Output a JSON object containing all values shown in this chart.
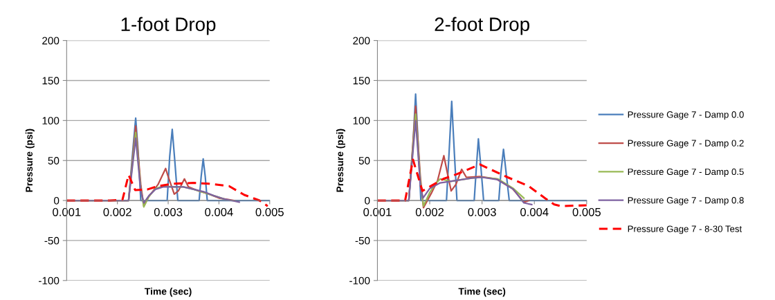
{
  "chart_data": [
    {
      "type": "line",
      "title": "1-foot Drop",
      "xlabel": "Time (sec)",
      "ylabel": "Pressure (psi)",
      "xlim": [
        0.001,
        0.005
      ],
      "xticks": [
        0.001,
        0.002,
        0.003,
        0.004,
        0.005
      ],
      "ylim": [
        -100,
        200
      ],
      "yticks": [
        -100,
        -50,
        0,
        50,
        100,
        150,
        200
      ],
      "grid": "y",
      "legend": false,
      "marker": "none",
      "series": [
        {
          "color": "#4a7ebb",
          "line_style": "solid",
          "x": [
            0.001,
            0.00222,
            0.0023,
            0.00236,
            0.00241,
            0.00246,
            0.00298,
            0.00303,
            0.00308,
            0.00313,
            0.00319,
            0.00361,
            0.00365,
            0.00369,
            0.00373,
            0.00377,
            0.005
          ],
          "values": [
            0,
            0,
            60,
            103,
            60,
            0,
            0,
            55,
            89,
            50,
            0,
            0,
            30,
            52,
            30,
            0,
            0
          ]
        },
        {
          "color": "#be4b48",
          "line_style": "solid",
          "x": [
            0.001,
            0.00222,
            0.00236,
            0.00246,
            0.00252,
            0.00262,
            0.0028,
            0.00295,
            0.003,
            0.00312,
            0.0032,
            0.00332,
            0.0034,
            0.0036,
            0.0038,
            0.004,
            0.0042,
            0.0043
          ],
          "values": [
            0,
            0,
            93,
            20,
            -7,
            5,
            20,
            40,
            30,
            8,
            12,
            27,
            17,
            12,
            8,
            3,
            1,
            0
          ]
        },
        {
          "color": "#98b954",
          "line_style": "solid",
          "x": [
            0.001,
            0.00222,
            0.00236,
            0.00246,
            0.00252,
            0.00262,
            0.00275,
            0.0029,
            0.0031,
            0.0033,
            0.0035,
            0.0037,
            0.0039,
            0.0041
          ],
          "values": [
            0,
            0,
            85,
            15,
            -8,
            5,
            15,
            18,
            17,
            17,
            14,
            10,
            6,
            2
          ]
        },
        {
          "color": "#7d60a0",
          "line_style": "solid",
          "x": [
            0.001,
            0.00222,
            0.00236,
            0.00246,
            0.00252,
            0.00262,
            0.00275,
            0.0029,
            0.0031,
            0.0033,
            0.0035,
            0.0037,
            0.0039,
            0.0041,
            0.0044
          ],
          "values": [
            0,
            0,
            78,
            12,
            -3,
            6,
            14,
            17,
            17,
            17,
            14,
            11,
            6,
            2,
            -2
          ]
        },
        {
          "color": "#ff0000",
          "line_style": "dashed",
          "x": [
            0.001,
            0.00185,
            0.0021,
            0.00222,
            0.00235,
            0.0026,
            0.0028,
            0.0031,
            0.0035,
            0.0038,
            0.0042,
            0.0045,
            0.0048,
            0.00496
          ],
          "values": [
            0,
            0,
            1,
            32,
            13,
            14,
            18,
            21,
            22,
            21,
            18,
            7,
            0,
            -7
          ]
        }
      ]
    },
    {
      "type": "line",
      "title": "2-foot Drop",
      "xlabel": "Time (sec)",
      "ylabel": "Pressure (psi)",
      "xlim": [
        0.001,
        0.005
      ],
      "xticks": [
        0.001,
        0.002,
        0.003,
        0.004,
        0.005
      ],
      "ylim": [
        -100,
        200
      ],
      "yticks": [
        -100,
        -50,
        0,
        50,
        100,
        150,
        200
      ],
      "grid": "y",
      "legend": "right",
      "marker": "none",
      "series": [
        {
          "name": "Pressure Gage 7 - Damp 0.0",
          "color": "#4a7ebb",
          "line_style": "solid",
          "x": [
            0.001,
            0.0016,
            0.00168,
            0.00173,
            0.00178,
            0.00183,
            0.00232,
            0.00237,
            0.00242,
            0.00247,
            0.00252,
            0.00285,
            0.00289,
            0.00293,
            0.00298,
            0.00303,
            0.00332,
            0.00336,
            0.00341,
            0.00346,
            0.00352,
            0.005
          ],
          "values": [
            0,
            0,
            70,
            133,
            70,
            0,
            0,
            60,
            124,
            60,
            0,
            0,
            40,
            77,
            40,
            0,
            0,
            35,
            64,
            35,
            0,
            0
          ]
        },
        {
          "name": "Pressure Gage 7 - Damp 0.2",
          "color": "#be4b48",
          "line_style": "solid",
          "x": [
            0.001,
            0.0016,
            0.00173,
            0.00182,
            0.00188,
            0.00203,
            0.00215,
            0.00227,
            0.00235,
            0.00241,
            0.0025,
            0.00261,
            0.0027,
            0.00296,
            0.00327,
            0.00358,
            0.0038,
            0.0039
          ],
          "values": [
            0,
            0,
            118,
            30,
            -9,
            9,
            25,
            56,
            30,
            12,
            20,
            39,
            29,
            30,
            27,
            15,
            -2,
            0
          ]
        },
        {
          "name": "Pressure Gage 7 - Damp 0.5",
          "color": "#98b954",
          "line_style": "solid",
          "x": [
            0.001,
            0.0016,
            0.00173,
            0.00182,
            0.00188,
            0.002,
            0.0021,
            0.0022,
            0.0024,
            0.0028,
            0.003,
            0.0033,
            0.0036,
            0.0038
          ],
          "values": [
            0,
            0,
            108,
            25,
            -7,
            10,
            20,
            27,
            24,
            28,
            29,
            27,
            15,
            3
          ]
        },
        {
          "name": "Pressure Gage 7 - Damp 0.8",
          "color": "#7d60a0",
          "line_style": "solid",
          "x": [
            0.001,
            0.0016,
            0.00173,
            0.00182,
            0.00187,
            0.002,
            0.0022,
            0.0025,
            0.0028,
            0.003,
            0.0033,
            0.0036,
            0.0038,
            0.00395
          ],
          "values": [
            0,
            0,
            100,
            20,
            3,
            15,
            22,
            25,
            28,
            29,
            26,
            14,
            -3,
            -5
          ]
        },
        {
          "name": "Pressure Gage 7 - 8-30 Test",
          "color": "#ff0000",
          "line_style": "dashed",
          "x": [
            0.001,
            0.00153,
            0.00168,
            0.00186,
            0.00226,
            0.00252,
            0.00296,
            0.00349,
            0.00389,
            0.0042,
            0.00438,
            0.0045,
            0.005
          ],
          "values": [
            0,
            0,
            51,
            12,
            27,
            33,
            45,
            29,
            18,
            3,
            -5,
            -7,
            -6
          ]
        }
      ]
    }
  ]
}
